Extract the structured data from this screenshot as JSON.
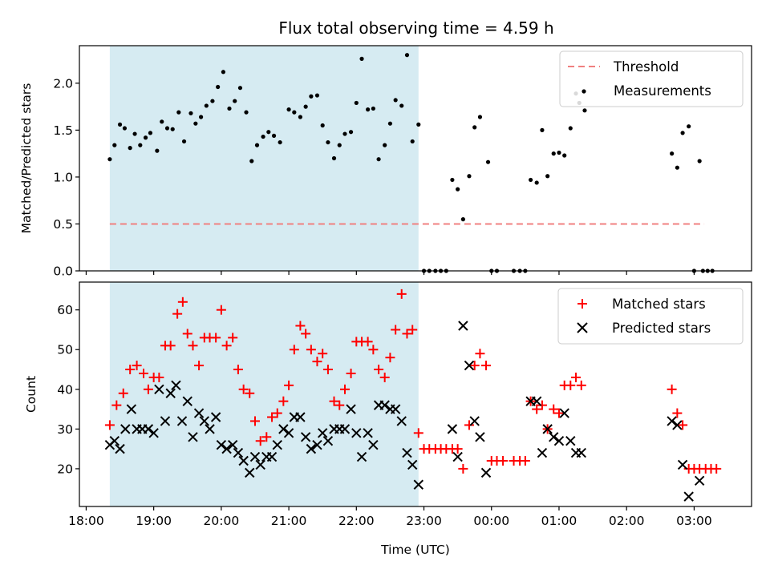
{
  "title": "Flux total observing time = 4.59 h",
  "xlabel": "Time (UTC)",
  "x_ticks": [
    "18:00",
    "19:00",
    "20:00",
    "21:00",
    "22:00",
    "23:00",
    "00:00",
    "01:00",
    "02:00",
    "03:00"
  ],
  "colors": {
    "threshold": "#f08080",
    "matched": "#ff0000",
    "predicted": "#000000",
    "shade": "#add8e6"
  },
  "chart_data": [
    {
      "type": "scatter",
      "ylabel": "Matched/Predicted stars",
      "ylim": [
        0,
        2.4
      ],
      "y_ticks": [
        "0.0",
        "0.5",
        "1.0",
        "1.5",
        "2.0"
      ],
      "x_unit": "hours since 18:00 UTC",
      "xlim": [
        -0.1,
        9.85
      ],
      "shaded_span": [
        0.35,
        4.92
      ],
      "threshold": {
        "value": 0.5,
        "x_range": [
          0.35,
          9.15
        ]
      },
      "legend": [
        {
          "label": "Threshold"
        },
        {
          "label": "Measurements"
        }
      ],
      "series": [
        {
          "name": "Measurements",
          "points": [
            [
              0.35,
              1.19
            ],
            [
              0.42,
              1.34
            ],
            [
              0.5,
              1.56
            ],
            [
              0.57,
              1.52
            ],
            [
              0.65,
              1.31
            ],
            [
              0.72,
              1.46
            ],
            [
              0.8,
              1.34
            ],
            [
              0.88,
              1.42
            ],
            [
              0.95,
              1.47
            ],
            [
              1.05,
              1.28
            ],
            [
              1.12,
              1.59
            ],
            [
              1.2,
              1.52
            ],
            [
              1.28,
              1.51
            ],
            [
              1.37,
              1.69
            ],
            [
              1.45,
              1.38
            ],
            [
              1.55,
              1.68
            ],
            [
              1.62,
              1.57
            ],
            [
              1.7,
              1.64
            ],
            [
              1.78,
              1.76
            ],
            [
              1.87,
              1.81
            ],
            [
              1.95,
              1.96
            ],
            [
              2.03,
              2.12
            ],
            [
              2.12,
              1.73
            ],
            [
              2.2,
              1.81
            ],
            [
              2.28,
              1.95
            ],
            [
              2.37,
              1.69
            ],
            [
              2.45,
              1.17
            ],
            [
              2.53,
              1.34
            ],
            [
              2.62,
              1.43
            ],
            [
              2.7,
              1.48
            ],
            [
              2.78,
              1.44
            ],
            [
              2.87,
              1.37
            ],
            [
              3.0,
              1.72
            ],
            [
              3.08,
              1.69
            ],
            [
              3.17,
              1.64
            ],
            [
              3.25,
              1.75
            ],
            [
              3.33,
              1.86
            ],
            [
              3.42,
              1.87
            ],
            [
              3.5,
              1.55
            ],
            [
              3.58,
              1.37
            ],
            [
              3.67,
              1.2
            ],
            [
              3.75,
              1.34
            ],
            [
              3.83,
              1.46
            ],
            [
              3.92,
              1.48
            ],
            [
              4.0,
              1.79
            ],
            [
              4.08,
              2.26
            ],
            [
              4.17,
              1.72
            ],
            [
              4.25,
              1.73
            ],
            [
              4.33,
              1.19
            ],
            [
              4.42,
              1.34
            ],
            [
              4.5,
              1.57
            ],
            [
              4.58,
              1.82
            ],
            [
              4.67,
              1.76
            ],
            [
              4.75,
              2.3
            ],
            [
              4.83,
              1.38
            ],
            [
              4.92,
              1.56
            ],
            [
              5.0,
              0.0
            ],
            [
              5.08,
              0.0
            ],
            [
              5.17,
              0.0
            ],
            [
              5.25,
              0.0
            ],
            [
              5.33,
              0.0
            ],
            [
              5.42,
              0.97
            ],
            [
              5.5,
              0.87
            ],
            [
              5.58,
              0.55
            ],
            [
              5.67,
              1.01
            ],
            [
              5.75,
              1.53
            ],
            [
              5.83,
              1.64
            ],
            [
              5.95,
              1.16
            ],
            [
              6.0,
              0.0
            ],
            [
              6.08,
              0.0
            ],
            [
              6.33,
              0.0
            ],
            [
              6.42,
              0.0
            ],
            [
              6.5,
              0.0
            ],
            [
              6.58,
              0.97
            ],
            [
              6.67,
              0.94
            ],
            [
              6.75,
              1.5
            ],
            [
              6.83,
              1.01
            ],
            [
              6.92,
              1.25
            ],
            [
              7.0,
              1.26
            ],
            [
              7.08,
              1.23
            ],
            [
              7.17,
              1.52
            ],
            [
              7.25,
              1.89
            ],
            [
              7.3,
              1.79
            ],
            [
              7.38,
              1.71
            ],
            [
              8.67,
              1.25
            ],
            [
              8.75,
              1.1
            ],
            [
              8.83,
              1.47
            ],
            [
              8.92,
              1.54
            ],
            [
              9.0,
              0.0
            ],
            [
              9.08,
              1.17
            ],
            [
              9.13,
              0.0
            ],
            [
              9.2,
              0.0
            ],
            [
              9.27,
              0.0
            ]
          ]
        }
      ]
    },
    {
      "type": "scatter",
      "ylabel": "Count",
      "ylim": [
        10.5,
        67
      ],
      "y_ticks": [
        "20",
        "30",
        "40",
        "50",
        "60"
      ],
      "x_unit": "hours since 18:00 UTC",
      "xlim": [
        -0.1,
        9.85
      ],
      "shaded_span": [
        0.35,
        4.92
      ],
      "legend": [
        {
          "label": "Matched stars"
        },
        {
          "label": "Predicted stars"
        }
      ],
      "series": [
        {
          "name": "Matched stars",
          "marker": "plus",
          "points": [
            [
              0.35,
              31
            ],
            [
              0.45,
              36
            ],
            [
              0.55,
              39
            ],
            [
              0.65,
              45
            ],
            [
              0.75,
              46
            ],
            [
              0.85,
              44
            ],
            [
              0.92,
              40
            ],
            [
              1.0,
              43
            ],
            [
              1.08,
              43
            ],
            [
              1.17,
              51
            ],
            [
              1.25,
              51
            ],
            [
              1.35,
              59
            ],
            [
              1.43,
              62
            ],
            [
              1.5,
              54
            ],
            [
              1.58,
              51
            ],
            [
              1.67,
              46
            ],
            [
              1.75,
              53
            ],
            [
              1.83,
              53
            ],
            [
              1.92,
              53
            ],
            [
              2.0,
              60
            ],
            [
              2.08,
              51
            ],
            [
              2.17,
              53
            ],
            [
              2.25,
              45
            ],
            [
              2.33,
              40
            ],
            [
              2.42,
              39
            ],
            [
              2.5,
              32
            ],
            [
              2.58,
              27
            ],
            [
              2.67,
              28
            ],
            [
              2.75,
              33
            ],
            [
              2.83,
              34
            ],
            [
              2.92,
              37
            ],
            [
              3.0,
              41
            ],
            [
              3.08,
              50
            ],
            [
              3.17,
              56
            ],
            [
              3.25,
              54
            ],
            [
              3.33,
              50
            ],
            [
              3.42,
              47
            ],
            [
              3.5,
              49
            ],
            [
              3.58,
              45
            ],
            [
              3.67,
              37
            ],
            [
              3.75,
              36
            ],
            [
              3.83,
              40
            ],
            [
              3.92,
              44
            ],
            [
              4.0,
              52
            ],
            [
              4.08,
              52
            ],
            [
              4.17,
              52
            ],
            [
              4.25,
              50
            ],
            [
              4.33,
              45
            ],
            [
              4.42,
              43
            ],
            [
              4.5,
              48
            ],
            [
              4.58,
              55
            ],
            [
              4.67,
              64
            ],
            [
              4.75,
              54
            ],
            [
              4.83,
              55
            ],
            [
              4.92,
              29
            ],
            [
              5.0,
              25
            ],
            [
              5.08,
              25
            ],
            [
              5.17,
              25
            ],
            [
              5.25,
              25
            ],
            [
              5.33,
              25
            ],
            [
              5.42,
              25
            ],
            [
              5.5,
              25
            ],
            [
              5.58,
              20
            ],
            [
              5.67,
              31
            ],
            [
              5.75,
              46
            ],
            [
              5.83,
              49
            ],
            [
              5.92,
              46
            ],
            [
              6.0,
              22
            ],
            [
              6.08,
              22
            ],
            [
              6.17,
              22
            ],
            [
              6.33,
              22
            ],
            [
              6.42,
              22
            ],
            [
              6.5,
              22
            ],
            [
              6.58,
              37
            ],
            [
              6.67,
              35
            ],
            [
              6.75,
              36
            ],
            [
              6.83,
              30
            ],
            [
              6.92,
              35
            ],
            [
              7.0,
              34
            ],
            [
              7.08,
              41
            ],
            [
              7.17,
              41
            ],
            [
              7.25,
              43
            ],
            [
              7.33,
              41
            ],
            [
              8.67,
              40
            ],
            [
              8.75,
              34
            ],
            [
              8.83,
              31
            ],
            [
              8.92,
              20
            ],
            [
              9.0,
              20
            ],
            [
              9.08,
              20
            ],
            [
              9.17,
              20
            ],
            [
              9.25,
              20
            ],
            [
              9.33,
              20
            ]
          ]
        },
        {
          "name": "Predicted stars",
          "marker": "x",
          "points": [
            [
              0.35,
              26
            ],
            [
              0.42,
              27
            ],
            [
              0.5,
              25
            ],
            [
              0.58,
              30
            ],
            [
              0.67,
              35
            ],
            [
              0.75,
              30
            ],
            [
              0.83,
              30
            ],
            [
              0.92,
              30
            ],
            [
              1.0,
              29
            ],
            [
              1.08,
              40
            ],
            [
              1.17,
              32
            ],
            [
              1.25,
              39
            ],
            [
              1.33,
              41
            ],
            [
              1.42,
              32
            ],
            [
              1.5,
              37
            ],
            [
              1.58,
              28
            ],
            [
              1.67,
              34
            ],
            [
              1.75,
              32
            ],
            [
              1.83,
              30
            ],
            [
              1.92,
              33
            ],
            [
              2.0,
              26
            ],
            [
              2.08,
              25
            ],
            [
              2.17,
              26
            ],
            [
              2.25,
              24
            ],
            [
              2.33,
              22
            ],
            [
              2.42,
              19
            ],
            [
              2.5,
              23
            ],
            [
              2.58,
              21
            ],
            [
              2.67,
              23
            ],
            [
              2.75,
              23
            ],
            [
              2.83,
              26
            ],
            [
              2.92,
              30
            ],
            [
              3.0,
              29
            ],
            [
              3.08,
              33
            ],
            [
              3.17,
              33
            ],
            [
              3.25,
              28
            ],
            [
              3.33,
              25
            ],
            [
              3.42,
              26
            ],
            [
              3.5,
              29
            ],
            [
              3.58,
              27
            ],
            [
              3.67,
              30
            ],
            [
              3.75,
              30
            ],
            [
              3.83,
              30
            ],
            [
              3.92,
              35
            ],
            [
              4.0,
              29
            ],
            [
              4.08,
              23
            ],
            [
              4.17,
              29
            ],
            [
              4.25,
              26
            ],
            [
              4.33,
              36
            ],
            [
              4.42,
              36
            ],
            [
              4.5,
              35
            ],
            [
              4.58,
              35
            ],
            [
              4.67,
              32
            ],
            [
              4.75,
              24
            ],
            [
              4.83,
              21
            ],
            [
              4.92,
              16
            ],
            [
              5.42,
              30
            ],
            [
              5.5,
              23
            ],
            [
              5.58,
              56
            ],
            [
              5.67,
              46
            ],
            [
              5.75,
              32
            ],
            [
              5.83,
              28
            ],
            [
              5.92,
              19
            ],
            [
              6.58,
              37
            ],
            [
              6.67,
              37
            ],
            [
              6.75,
              24
            ],
            [
              6.83,
              30
            ],
            [
              6.92,
              28
            ],
            [
              7.0,
              27
            ],
            [
              7.08,
              34
            ],
            [
              7.17,
              27
            ],
            [
              7.25,
              24
            ],
            [
              7.33,
              24
            ],
            [
              8.67,
              32
            ],
            [
              8.75,
              31
            ],
            [
              8.83,
              21
            ],
            [
              8.92,
              13
            ],
            [
              9.08,
              17
            ]
          ]
        }
      ]
    }
  ]
}
